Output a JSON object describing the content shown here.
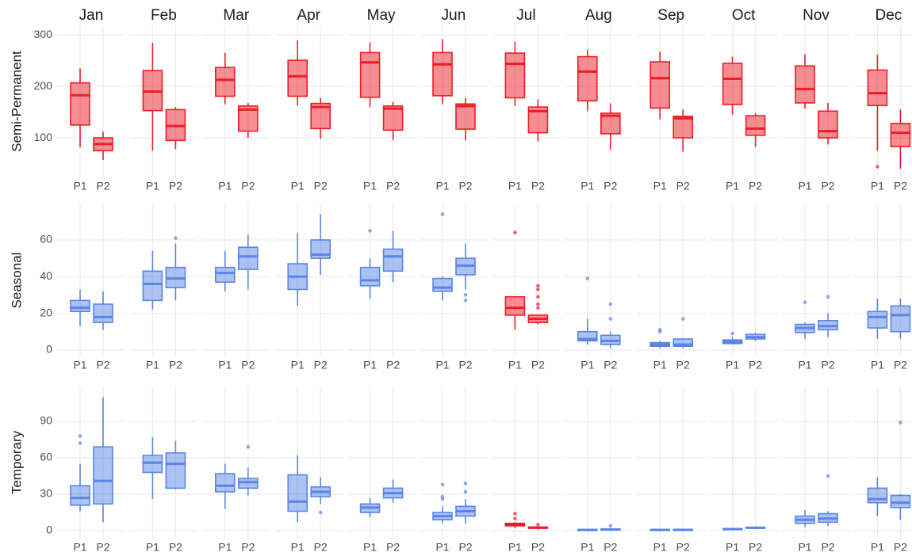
{
  "chart_data": {
    "type": "box",
    "columns": [
      "Jan",
      "Feb",
      "Mar",
      "Apr",
      "May",
      "Jun",
      "Jul",
      "Aug",
      "Sep",
      "Oct",
      "Nov",
      "Dec"
    ],
    "groups": [
      "P1",
      "P2"
    ],
    "grid": true,
    "rows": [
      {
        "name": "Semi-Permanent",
        "ylim": [
          23,
          319
        ],
        "yticks": [
          100,
          200,
          300
        ],
        "colors": [
          "#ee1c25",
          "#ee1c25",
          "#ee1c25",
          "#ee1c25",
          "#ee1c25",
          "#ee1c25",
          "#ee1c25",
          "#ee1c25",
          "#ee1c25",
          "#ee1c25",
          "#ee1c25",
          "#ee1c25"
        ],
        "boxes": [
          [
            {
              "low": 82,
              "q1": 125,
              "median": 183,
              "q3": 207,
              "high": 235
            },
            {
              "low": 57,
              "q1": 75,
              "median": 88,
              "q3": 100,
              "high": 112
            }
          ],
          [
            {
              "low": 75,
              "q1": 153,
              "median": 190,
              "q3": 231,
              "high": 285
            },
            {
              "low": 78,
              "q1": 95,
              "median": 123,
              "q3": 155,
              "high": 160
            }
          ],
          [
            {
              "low": 165,
              "q1": 181,
              "median": 213,
              "q3": 237,
              "high": 265
            },
            {
              "low": 100,
              "q1": 113,
              "median": 155,
              "q3": 162,
              "high": 168
            }
          ],
          [
            {
              "low": 163,
              "q1": 181,
              "median": 220,
              "q3": 251,
              "high": 290
            },
            {
              "low": 98,
              "q1": 118,
              "median": 160,
              "q3": 167,
              "high": 178
            }
          ],
          [
            {
              "low": 160,
              "q1": 179,
              "median": 247,
              "q3": 266,
              "high": 286
            },
            {
              "low": 96,
              "q1": 115,
              "median": 157,
              "q3": 162,
              "high": 170
            }
          ],
          [
            {
              "low": 165,
              "q1": 182,
              "median": 243,
              "q3": 266,
              "high": 292
            },
            {
              "low": 95,
              "q1": 117,
              "median": 162,
              "q3": 166,
              "high": 178
            }
          ],
          [
            {
              "low": 162,
              "q1": 178,
              "median": 244,
              "q3": 265,
              "high": 287
            },
            {
              "low": 93,
              "q1": 110,
              "median": 152,
              "q3": 160,
              "high": 175
            }
          ],
          [
            {
              "low": 152,
              "q1": 172,
              "median": 229,
              "q3": 258,
              "high": 272
            },
            {
              "low": 77,
              "q1": 108,
              "median": 143,
              "q3": 148,
              "high": 167
            }
          ],
          [
            {
              "low": 136,
              "q1": 158,
              "median": 216,
              "q3": 248,
              "high": 268
            },
            {
              "low": 73,
              "q1": 100,
              "median": 138,
              "q3": 142,
              "high": 155
            }
          ],
          [
            {
              "low": 145,
              "q1": 165,
              "median": 215,
              "q3": 245,
              "high": 258
            },
            {
              "low": 82,
              "q1": 105,
              "median": 118,
              "q3": 143,
              "high": 148
            }
          ],
          [
            {
              "low": 157,
              "q1": 168,
              "median": 195,
              "q3": 240,
              "high": 263
            },
            {
              "low": 87,
              "q1": 100,
              "median": 113,
              "q3": 152,
              "high": 168
            }
          ],
          [
            {
              "low": 75,
              "q1": 163,
              "median": 187,
              "q3": 232,
              "high": 262,
              "outliers": [
                44
              ]
            },
            {
              "low": 40,
              "q1": 83,
              "median": 110,
              "q3": 128,
              "high": 155
            }
          ]
        ]
      },
      {
        "name": "Seasonal",
        "ylim": [
          -3.5,
          79.4
        ],
        "yticks": [
          0,
          20,
          40,
          60
        ],
        "colors": [
          "#5a85e6",
          "#5a85e6",
          "#5a85e6",
          "#5a85e6",
          "#5a85e6",
          "#5a85e6",
          "#ee1c25",
          "#5a85e6",
          "#5a85e6",
          "#5a85e6",
          "#5a85e6",
          "#5a85e6"
        ],
        "boxes": [
          [
            {
              "low": 13,
              "q1": 21,
              "median": 23,
              "q3": 27,
              "high": 33
            },
            {
              "low": 11,
              "q1": 15,
              "median": 18,
              "q3": 25,
              "high": 32
            }
          ],
          [
            {
              "low": 22,
              "q1": 27,
              "median": 36,
              "q3": 43,
              "high": 54
            },
            {
              "low": 27,
              "q1": 34,
              "median": 39,
              "q3": 45,
              "high": 58,
              "outliers": [
                61
              ]
            }
          ],
          [
            {
              "low": 32,
              "q1": 37,
              "median": 42,
              "q3": 45,
              "high": 54
            },
            {
              "low": 33,
              "q1": 44,
              "median": 51,
              "q3": 56,
              "high": 63
            }
          ],
          [
            {
              "low": 24,
              "q1": 33,
              "median": 40,
              "q3": 47,
              "high": 64
            },
            {
              "low": 41,
              "q1": 50,
              "median": 52,
              "q3": 60,
              "high": 74
            }
          ],
          [
            {
              "low": 28,
              "q1": 35,
              "median": 38,
              "q3": 45,
              "high": 50,
              "outliers": [
                65
              ]
            },
            {
              "low": 37,
              "q1": 43,
              "median": 51,
              "q3": 55,
              "high": 65
            }
          ],
          [
            {
              "low": 27,
              "q1": 32,
              "median": 34,
              "q3": 39,
              "high": 40,
              "outliers": [
                74
              ]
            },
            {
              "low": 33,
              "q1": 41,
              "median": 46,
              "q3": 50,
              "high": 58,
              "outliers": [
                30,
                27
              ]
            }
          ],
          [
            {
              "low": 11,
              "q1": 19,
              "median": 23,
              "q3": 29,
              "high": 29,
              "outliers": [
                64
              ]
            },
            {
              "low": 14,
              "q1": 15,
              "median": 17,
              "q3": 19,
              "high": 19,
              "outliers": [
                35,
                33,
                29,
                25,
                23
              ]
            }
          ],
          [
            {
              "low": 3,
              "q1": 5,
              "median": 6,
              "q3": 10,
              "high": 17,
              "outliers": [
                39
              ]
            },
            {
              "low": 1,
              "q1": 3,
              "median": 5,
              "q3": 8,
              "high": 10,
              "outliers": [
                25,
                17
              ]
            }
          ],
          [
            {
              "low": 1,
              "q1": 2,
              "median": 3,
              "q3": 4,
              "high": 5,
              "outliers": [
                10,
                11
              ]
            },
            {
              "low": 1,
              "q1": 2,
              "median": 3,
              "q3": 6,
              "high": 6,
              "outliers": [
                17
              ]
            }
          ],
          [
            {
              "low": 3,
              "q1": 3.5,
              "median": 4.5,
              "q3": 5.5,
              "high": 7,
              "outliers": [
                9
              ]
            },
            {
              "low": 5,
              "q1": 6,
              "median": 7,
              "q3": 8.5,
              "high": 9.5
            }
          ],
          [
            {
              "low": 6,
              "q1": 9.5,
              "median": 12,
              "q3": 14,
              "high": 15,
              "outliers": [
                26
              ]
            },
            {
              "low": 7,
              "q1": 11,
              "median": 13,
              "q3": 16,
              "high": 20,
              "outliers": [
                29
              ]
            }
          ],
          [
            {
              "low": 6,
              "q1": 12,
              "median": 18,
              "q3": 21,
              "high": 28
            },
            {
              "low": 6,
              "q1": 10,
              "median": 19,
              "q3": 24,
              "high": 28
            }
          ]
        ]
      },
      {
        "name": "Temporary",
        "ylim": [
          -6.5,
          118.7
        ],
        "yticks": [
          0,
          30,
          60,
          90
        ],
        "colors": [
          "#5a85e6",
          "#5a85e6",
          "#5a85e6",
          "#5a85e6",
          "#5a85e6",
          "#5a85e6",
          "#ee1c25",
          "#5a85e6",
          "#5a85e6",
          "#5a85e6",
          "#5a85e6",
          "#5a85e6"
        ],
        "boxes": [
          [
            {
              "low": 16,
              "q1": 21,
              "median": 27,
              "q3": 37,
              "high": 55,
              "outliers": [
                72,
                78
              ]
            },
            {
              "low": 7,
              "q1": 22,
              "median": 41,
              "q3": 69,
              "high": 110
            }
          ],
          [
            {
              "low": 26,
              "q1": 48,
              "median": 56,
              "q3": 62,
              "high": 77
            },
            {
              "low": 34,
              "q1": 35,
              "median": 55,
              "q3": 64,
              "high": 74
            }
          ],
          [
            {
              "low": 18,
              "q1": 32,
              "median": 37,
              "q3": 47,
              "high": 55
            },
            {
              "low": 29,
              "q1": 35,
              "median": 40,
              "q3": 43,
              "high": 52,
              "outliers": [
                69
              ]
            }
          ],
          [
            {
              "low": 7,
              "q1": 16,
              "median": 24,
              "q3": 46,
              "high": 62
            },
            {
              "low": 22,
              "q1": 28,
              "median": 32,
              "q3": 36,
              "high": 44,
              "outliers": [
                15
              ]
            }
          ],
          [
            {
              "low": 11,
              "q1": 15,
              "median": 19,
              "q3": 22,
              "high": 27
            },
            {
              "low": 23,
              "q1": 27,
              "median": 31,
              "q3": 35,
              "high": 42
            }
          ],
          [
            {
              "low": 6,
              "q1": 9,
              "median": 12,
              "q3": 15,
              "high": 20,
              "outliers": [
                26,
                28,
                38
              ]
            },
            {
              "low": 6,
              "q1": 12,
              "median": 16,
              "q3": 20,
              "high": 26,
              "outliers": [
                32,
                39
              ]
            }
          ],
          [
            {
              "low": 2,
              "q1": 4,
              "median": 5,
              "q3": 6,
              "high": 7,
              "outliers": [
                10,
                14
              ]
            },
            {
              "low": 1,
              "q1": 2,
              "median": 2.5,
              "q3": 3,
              "high": 3,
              "outliers": [
                5
              ]
            }
          ],
          [
            {
              "low": 0,
              "q1": 0.3,
              "median": 0.6,
              "q3": 1,
              "high": 1.5
            },
            {
              "low": 0,
              "q1": 0.5,
              "median": 1,
              "q3": 1.5,
              "high": 2,
              "outliers": [
                4
              ]
            }
          ],
          [
            {
              "low": 0,
              "q1": 0.3,
              "median": 0.6,
              "q3": 1,
              "high": 1.2
            },
            {
              "low": 0,
              "q1": 0.4,
              "median": 0.7,
              "q3": 1,
              "high": 1.4
            }
          ],
          [
            {
              "low": 0.5,
              "q1": 1,
              "median": 1.3,
              "q3": 1.6,
              "high": 2
            },
            {
              "low": 1.5,
              "q1": 2,
              "median": 2.4,
              "q3": 2.8,
              "high": 3
            }
          ],
          [
            {
              "low": 3,
              "q1": 6,
              "median": 9,
              "q3": 12,
              "high": 17
            },
            {
              "low": 4,
              "q1": 7,
              "median": 10,
              "q3": 14,
              "high": 16,
              "outliers": [
                45
              ]
            }
          ],
          [
            {
              "low": 12,
              "q1": 23,
              "median": 26,
              "q3": 35,
              "high": 44
            },
            {
              "low": 9,
              "q1": 19,
              "median": 23,
              "q3": 29,
              "high": 30,
              "outliers": [
                89
              ]
            }
          ]
        ]
      }
    ]
  }
}
